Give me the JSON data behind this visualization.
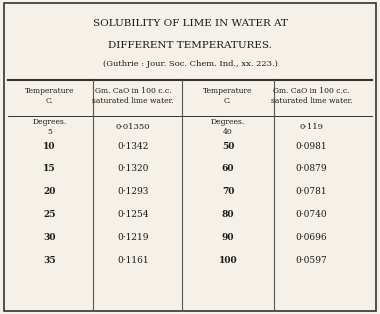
{
  "title_line1": "SOLUBILITY OF LIME IN WATER AT",
  "title_line2": "DIFFERENT TEMPERATURES.",
  "subtitle": "(Guthrie : Jour. Soc. Chem. Ind., xx. 223.)",
  "col_headers": [
    "Temperature\nC.",
    "Gm. CaO in 100 c.c.\nsaturated lime water.",
    "Temperature\nC.",
    "Gm. CaO in 100 c.c.\nsaturated lime water."
  ],
  "sub_header_left": "Degrees.\n5",
  "sub_header_right": "Degrees.\n40",
  "left_temps": [
    "5",
    "10",
    "15",
    "20",
    "25",
    "30",
    "35"
  ],
  "left_values": [
    "0·01350",
    "0·1342",
    "0·1320",
    "0·1293",
    "0·1254",
    "0·1219",
    "0·1161"
  ],
  "right_temps": [
    "40",
    "50",
    "60",
    "70",
    "80",
    "90",
    "100"
  ],
  "right_values": [
    "0·119",
    "0·0981",
    "0·0879",
    "0·0781",
    "0·0740",
    "0·0696",
    "0·0597"
  ],
  "bg_color": "#f5f0e8",
  "text_color": "#1a1a1a",
  "border_color": "#333333",
  "col_divider_color": "#555555"
}
